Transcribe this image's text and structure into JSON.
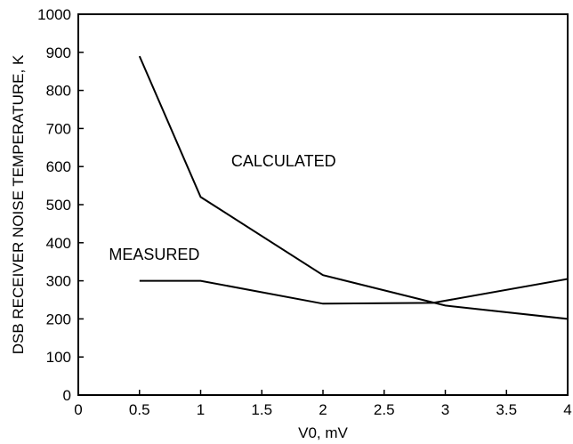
{
  "chart_data": {
    "type": "line",
    "title": "",
    "xlabel": "V0, mV",
    "ylabel": "DSB RECEIVER NOISE TEMPERATURE, K",
    "xlim": [
      0,
      4
    ],
    "ylim": [
      0,
      1000
    ],
    "x_ticks": [
      0,
      0.5,
      1,
      1.5,
      2,
      2.5,
      3,
      3.5,
      4
    ],
    "x_tick_labels": [
      "0",
      "0.5",
      "1",
      "1.5",
      "2",
      "2.5",
      "3",
      "3.5",
      "4"
    ],
    "y_ticks": [
      0,
      100,
      200,
      300,
      400,
      500,
      600,
      700,
      800,
      900,
      1000
    ],
    "y_tick_labels": [
      "0",
      "100",
      "200",
      "300",
      "400",
      "500",
      "600",
      "700",
      "800",
      "900",
      "1000"
    ],
    "grid": false,
    "series": [
      {
        "name": "CALCULATED",
        "x": [
          0.5,
          1,
          2,
          3,
          4
        ],
        "y": [
          890,
          520,
          315,
          235,
          200
        ]
      },
      {
        "name": "MEASURED",
        "x": [
          0.5,
          1,
          2,
          2.9,
          4
        ],
        "y": [
          300,
          300,
          240,
          242,
          305
        ]
      }
    ],
    "annotations": [
      {
        "text": "CALCULATED",
        "x": 1.25,
        "y": 600
      },
      {
        "text": "MEASURED",
        "x": 0.25,
        "y": 355
      }
    ],
    "colors": {
      "line": "#000000",
      "axis": "#000000"
    }
  }
}
